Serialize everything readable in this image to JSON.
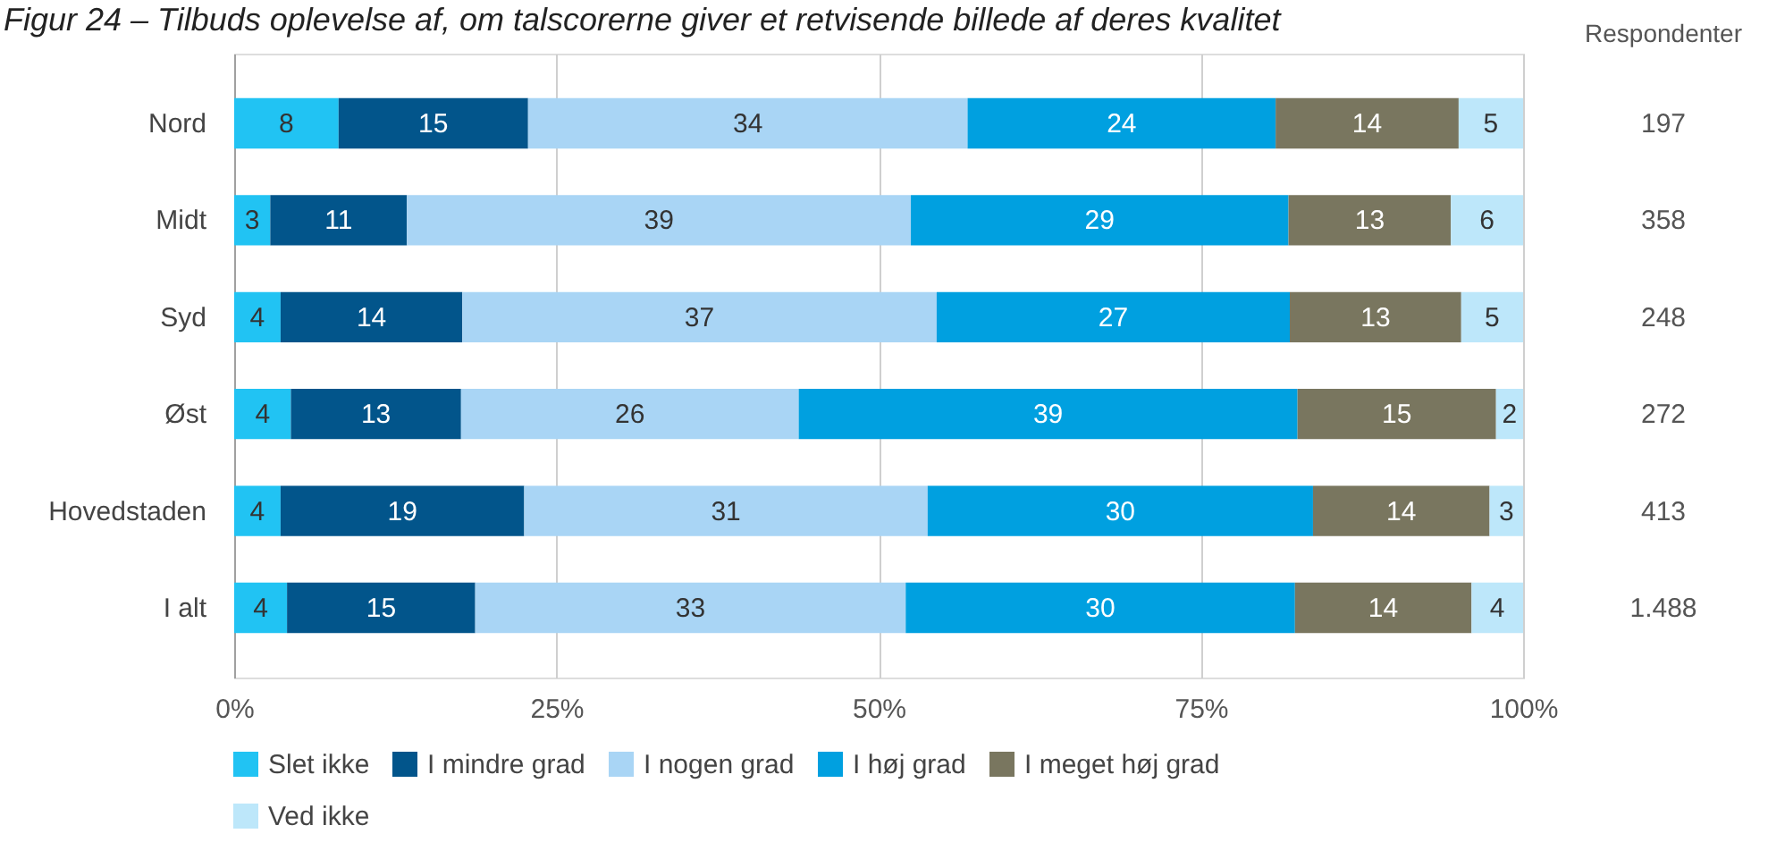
{
  "chart_data": {
    "type": "bar",
    "orientation": "horizontal",
    "stacked": true,
    "title": "Figur 24 – Tilbuds oplevelse af, om talscorerne giver et retvisende billede af deres kvalitet",
    "y2label": "Respondenter",
    "categories": [
      "Nord",
      "Midt",
      "Syd",
      "Øst",
      "Hovedstaden",
      "I alt"
    ],
    "y2_categories": [
      "197",
      "358",
      "248",
      "272",
      "413",
      "1.488"
    ],
    "series": [
      {
        "name": "Slet ikke",
        "color": "#21c3f3",
        "values": [
          8.1,
          2.8,
          3.6,
          4.4,
          3.6,
          4.1
        ],
        "value_labels": [
          "8",
          "3",
          "4",
          "4",
          "4",
          "4"
        ]
      },
      {
        "name": "I mindre grad",
        "color": "#02558b",
        "values": [
          14.7,
          10.6,
          14.1,
          13.2,
          18.9,
          14.6
        ],
        "value_labels": [
          "15",
          "11",
          "14",
          "13",
          "19",
          "15"
        ]
      },
      {
        "name": "I nogen grad",
        "color": "#a9d5f5",
        "values": [
          34.1,
          39.1,
          36.8,
          26.2,
          31.3,
          33.4
        ],
        "value_labels": [
          "34",
          "39",
          "37",
          "26",
          "31",
          "33"
        ]
      },
      {
        "name": "I høj grad",
        "color": "#00a0e0",
        "values": [
          23.9,
          29.3,
          27.4,
          38.7,
          29.9,
          30.2
        ],
        "value_labels": [
          "24",
          "29",
          "27",
          "39",
          "30",
          "30"
        ]
      },
      {
        "name": "I meget høj grad",
        "color": "#79765f",
        "values": [
          14.2,
          12.6,
          13.3,
          15.4,
          13.7,
          13.7
        ],
        "value_labels": [
          "14",
          "13",
          "13",
          "15",
          "14",
          "14"
        ]
      },
      {
        "name": "Ved ikke",
        "color": "#bde7fa",
        "values": [
          5.0,
          5.6,
          4.8,
          2.1,
          2.6,
          4.0
        ],
        "value_labels": [
          "5",
          "6",
          "5",
          "2",
          "3",
          "4"
        ]
      }
    ],
    "xlim": [
      0,
      100
    ],
    "xticks": [
      {
        "value": 0,
        "label": "0%"
      },
      {
        "value": 25,
        "label": "25%"
      },
      {
        "value": 50,
        "label": "50%"
      },
      {
        "value": 75,
        "label": "75%"
      },
      {
        "value": 100,
        "label": "100%"
      }
    ],
    "grid": "x",
    "legend": "bottom"
  }
}
